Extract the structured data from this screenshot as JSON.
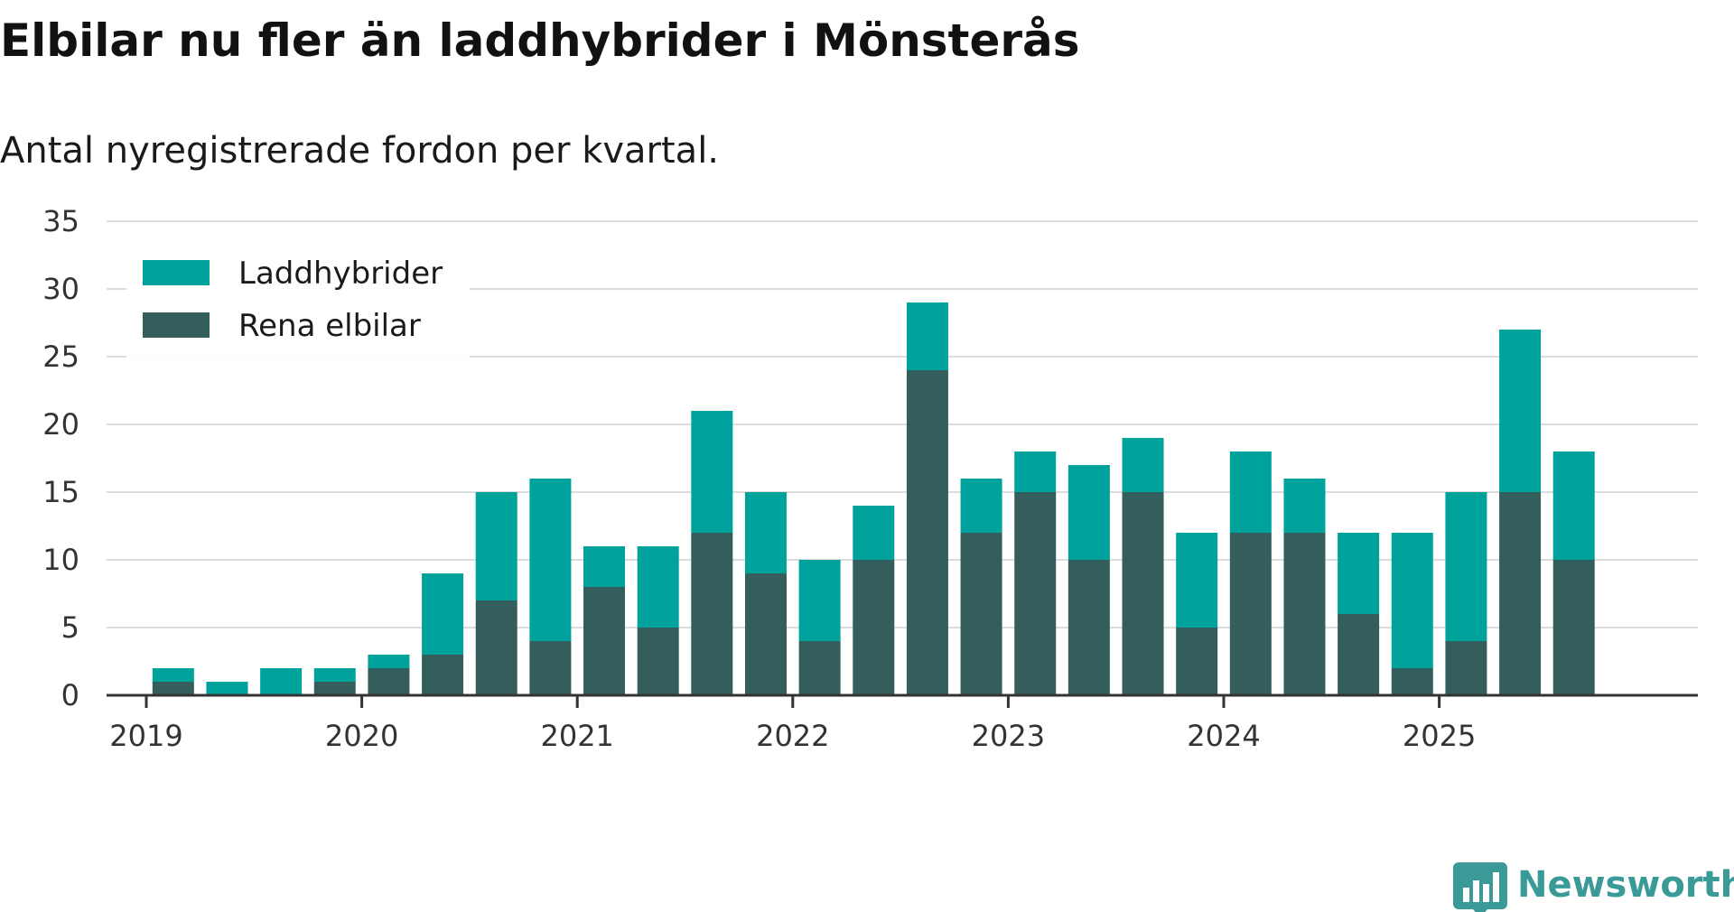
{
  "chart_data": {
    "type": "bar",
    "stacked": true,
    "title": "Elbilar nu fler än laddhybrider i Mönsterås",
    "subtitle": "Antal nyregistrerade fordon per kvartal.",
    "ylim": [
      0,
      35
    ],
    "yticks": [
      "0",
      "5",
      "10",
      "15",
      "20",
      "25",
      "30",
      "35"
    ],
    "ytick_values": [
      0,
      5,
      10,
      15,
      20,
      25,
      30,
      35
    ],
    "year_labels": [
      "2019",
      "2020",
      "2021",
      "2022",
      "2023",
      "2024",
      "2025"
    ],
    "categories": [
      "2019 Q1",
      "2019 Q2",
      "2019 Q3",
      "2019 Q4",
      "2020 Q1",
      "2020 Q2",
      "2020 Q3",
      "2020 Q4",
      "2021 Q1",
      "2021 Q2",
      "2021 Q3",
      "2021 Q4",
      "2022 Q1",
      "2022 Q2",
      "2022 Q3",
      "2022 Q4",
      "2023 Q1",
      "2023 Q2",
      "2023 Q3",
      "2023 Q4",
      "2024 Q1",
      "2024 Q2",
      "2024 Q3",
      "2024 Q4",
      "2025 Q1",
      "2025 Q2",
      "2025 Q3",
      "2025 Q4"
    ],
    "series": [
      {
        "name": "Rena elbilar",
        "color": "#335e5b",
        "values": [
          1,
          0,
          0,
          1,
          2,
          3,
          7,
          4,
          8,
          5,
          12,
          9,
          4,
          10,
          24,
          12,
          15,
          10,
          15,
          5,
          12,
          12,
          6,
          2,
          4,
          15,
          10,
          0
        ]
      },
      {
        "name": "Laddhybrider",
        "color": "#00a39c",
        "values": [
          1,
          1,
          2,
          1,
          1,
          6,
          8,
          12,
          3,
          6,
          9,
          6,
          6,
          4,
          5,
          4,
          3,
          7,
          4,
          7,
          6,
          4,
          6,
          10,
          11,
          12,
          8,
          0
        ]
      }
    ],
    "legend": {
      "position": "top-left",
      "order": [
        "Laddhybrider",
        "Rena elbilar"
      ]
    },
    "grid": true
  },
  "brand": {
    "name": "Newsworthy",
    "color": "#3a9a98",
    "icon": "bar-chart-speech-bubble-icon"
  }
}
